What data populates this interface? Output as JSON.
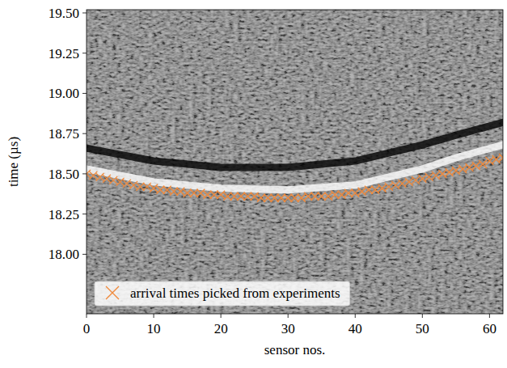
{
  "chart_data": {
    "type": "scatter",
    "x_label": "sensor nos.",
    "y_label": "time (µs)",
    "xlim": [
      0,
      62
    ],
    "ylim": [
      17.63,
      19.52
    ],
    "xticks": [
      0,
      10,
      20,
      30,
      40,
      50,
      60
    ],
    "yticks": [
      {
        "value": 18,
        "label": "18.00"
      },
      18.25,
      {
        "value": 18.5,
        "label": "18.50"
      },
      18.75,
      {
        "value": 19,
        "label": "19.00"
      },
      19.25,
      {
        "value": 19.5,
        "label": "19.50"
      }
    ],
    "legend": "lower left",
    "series": [
      {
        "type": "line",
        "color": "#000000",
        "x": [
          0,
          5,
          10,
          20,
          30,
          40,
          50,
          55,
          62
        ],
        "values": [
          18.66,
          18.62,
          18.58,
          18.54,
          18.54,
          18.58,
          18.68,
          18.74,
          18.82
        ]
      },
      {
        "type": "line",
        "color": "#ffffff",
        "x": [
          0,
          10,
          20,
          30,
          40,
          50,
          55,
          62
        ],
        "values": [
          18.53,
          18.45,
          18.41,
          18.4,
          18.43,
          18.53,
          18.6,
          18.68
        ]
      },
      {
        "name": "arrival times picked from experiments",
        "type": "scatter",
        "marker": "x",
        "color": "#f08a3c",
        "x": [
          0,
          1,
          2,
          3,
          4,
          5,
          6,
          7,
          8,
          9,
          10,
          11,
          12,
          13,
          14,
          15,
          16,
          17,
          18,
          19,
          20,
          21,
          22,
          23,
          24,
          25,
          26,
          27,
          28,
          29,
          30,
          31,
          32,
          33,
          34,
          35,
          36,
          37,
          38,
          39,
          40,
          41,
          42,
          43,
          44,
          45,
          46,
          47,
          48,
          49,
          50,
          51,
          52,
          53,
          54,
          55,
          56,
          57,
          58,
          59,
          60,
          61,
          62
        ],
        "values": [
          18.5,
          18.49,
          18.48,
          18.47,
          18.46,
          18.45,
          18.44,
          18.43,
          18.42,
          18.42,
          18.41,
          18.4,
          18.4,
          18.39,
          18.39,
          18.38,
          18.38,
          18.38,
          18.37,
          18.37,
          18.37,
          18.36,
          18.36,
          18.36,
          18.36,
          18.36,
          18.35,
          18.35,
          18.35,
          18.35,
          18.35,
          18.35,
          18.35,
          18.36,
          18.36,
          18.36,
          18.36,
          18.37,
          18.37,
          18.38,
          18.38,
          18.39,
          18.4,
          18.4,
          18.41,
          18.42,
          18.43,
          18.44,
          18.45,
          18.46,
          18.47,
          18.48,
          18.49,
          18.5,
          18.51,
          18.52,
          18.53,
          18.54,
          18.55,
          18.56,
          18.58,
          18.59,
          18.6
        ]
      }
    ]
  }
}
